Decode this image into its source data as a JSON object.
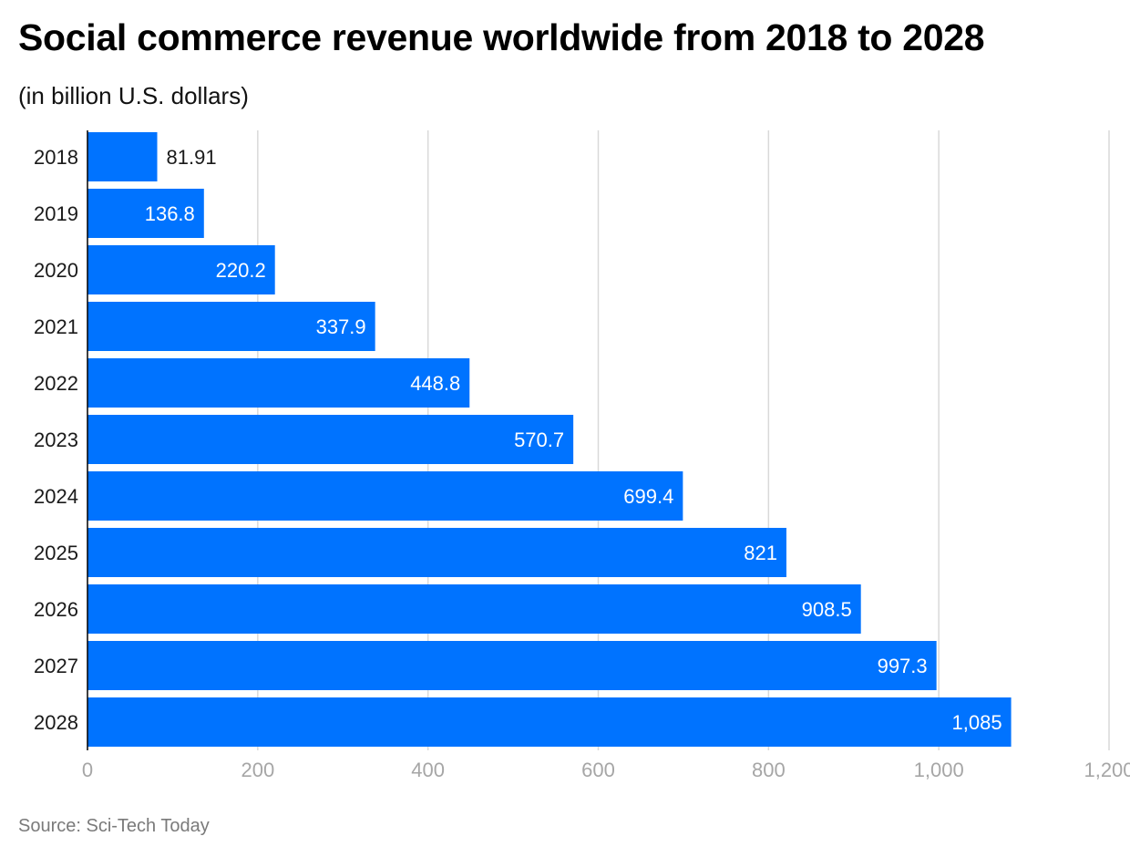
{
  "header": {
    "title": "Social commerce revenue worldwide from 2018 to 2028",
    "subtitle": "(in billion U.S. dollars)"
  },
  "footer": {
    "source": "Source: Sci-Tech Today"
  },
  "colors": {
    "bar": "#0073ff",
    "grid": "#d9d9d9",
    "axis": "#000000",
    "label_inside": "#ffffff",
    "label_outside": "#1a1a1a"
  },
  "chart_data": {
    "type": "bar",
    "orientation": "horizontal",
    "categories": [
      "2018",
      "2019",
      "2020",
      "2021",
      "2022",
      "2023",
      "2024",
      "2025",
      "2026",
      "2027",
      "2028"
    ],
    "values": [
      81.91,
      136.8,
      220.2,
      337.9,
      448.8,
      570.7,
      699.4,
      821,
      908.5,
      997.3,
      1085
    ],
    "value_labels": [
      "81.91",
      "136.8",
      "220.2",
      "337.9",
      "448.8",
      "570.7",
      "699.4",
      "821",
      "908.5",
      "997.3",
      "1,085"
    ],
    "title": "Social commerce revenue worldwide from 2018 to 2028",
    "subtitle": "(in billion U.S. dollars)",
    "xlim": [
      0,
      1200
    ],
    "x_ticks": [
      0,
      200,
      400,
      600,
      800,
      1000,
      1200
    ],
    "x_tick_labels": [
      "0",
      "200",
      "400",
      "600",
      "800",
      "1,000",
      "1,200"
    ],
    "grid": true,
    "legend": "none"
  }
}
